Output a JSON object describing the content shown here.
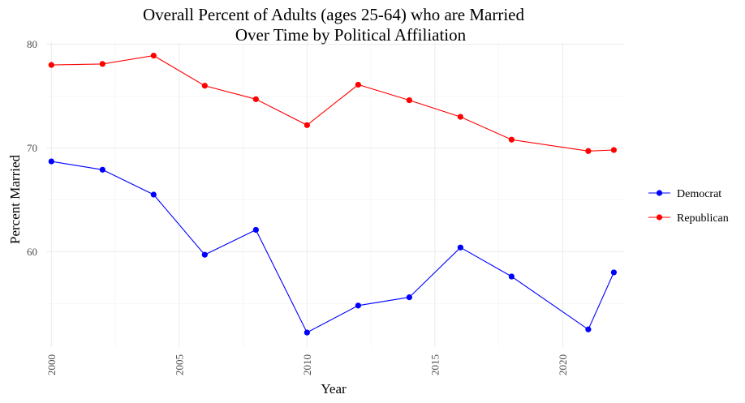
{
  "chart_data": {
    "type": "line",
    "title": "Overall Percent of Adults (ages 25-64) who are Married",
    "subtitle": "Over Time by Political Affiliation",
    "xlabel": "Year",
    "ylabel": "Percent Married",
    "x": [
      2000,
      2002,
      2004,
      2006,
      2008,
      2010,
      2012,
      2014,
      2016,
      2018,
      2021,
      2022
    ],
    "series": [
      {
        "name": "Democrat",
        "color": "#0000ff",
        "values": [
          68.7,
          67.9,
          65.5,
          59.7,
          62.1,
          52.2,
          54.8,
          55.6,
          60.4,
          57.6,
          52.5,
          58.0
        ]
      },
      {
        "name": "Republican",
        "color": "#ff0000",
        "values": [
          78.0,
          78.1,
          78.9,
          76.0,
          74.7,
          72.2,
          76.1,
          74.6,
          73.0,
          70.8,
          69.7,
          69.8
        ]
      }
    ],
    "xlim": [
      1999.8,
      2022.4
    ],
    "ylim": [
      50.8,
      80.2
    ],
    "x_ticks": [
      2000,
      2005,
      2010,
      2015,
      2020
    ],
    "y_ticks": [
      60,
      70,
      80
    ],
    "grid": true,
    "legend": "right"
  }
}
